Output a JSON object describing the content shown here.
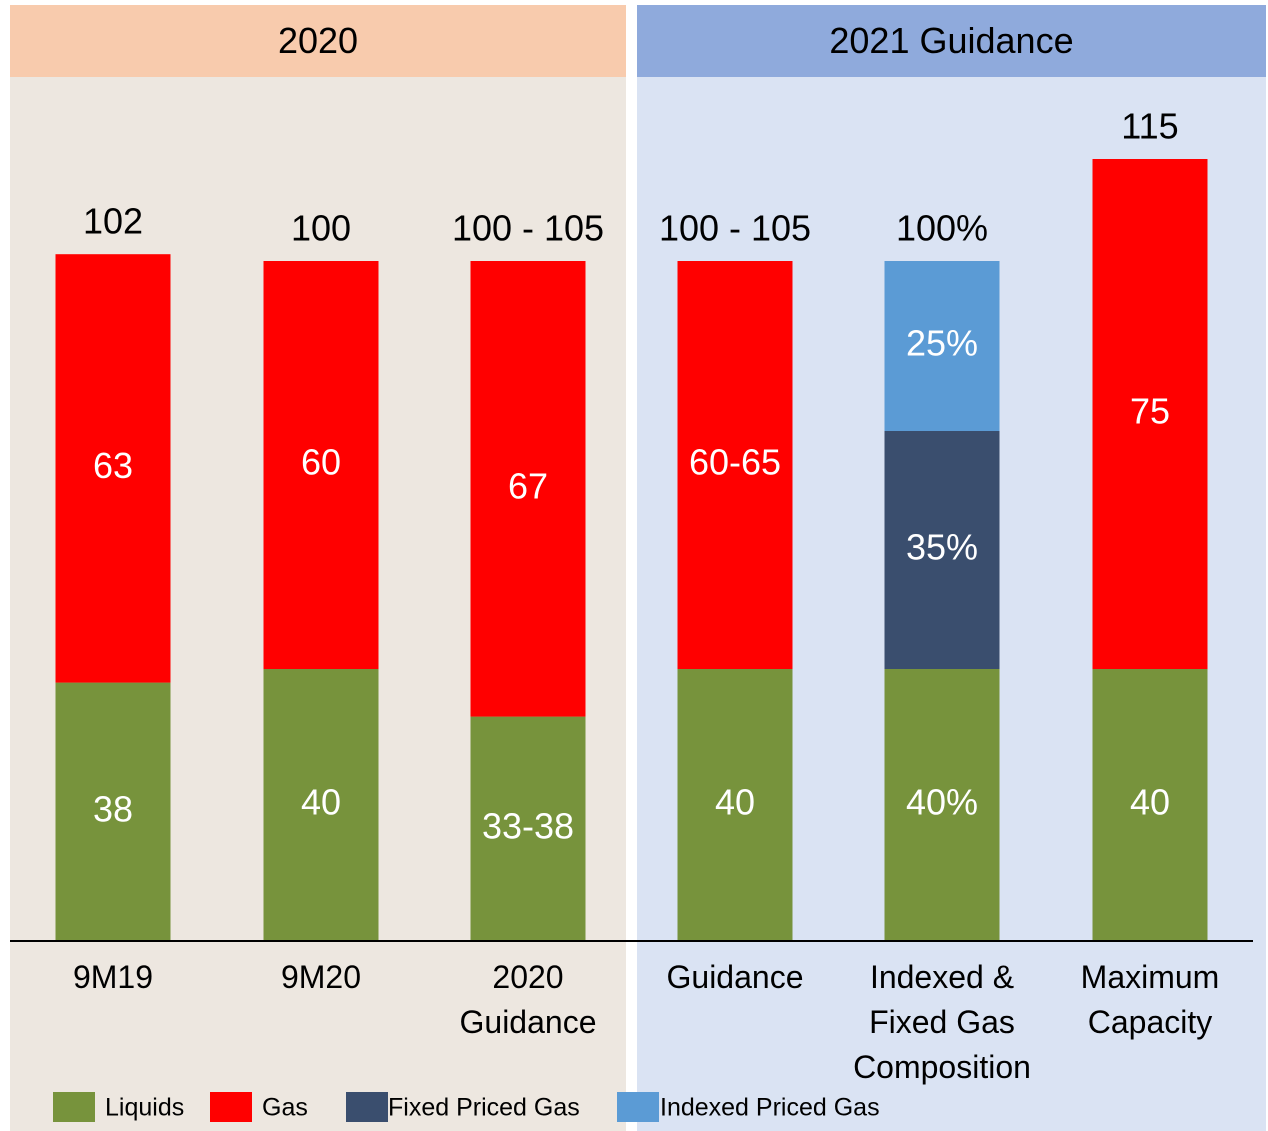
{
  "chart_data": {
    "type": "stacked-bar",
    "groups": [
      {
        "label": "2020",
        "color": "#f8cbad",
        "background": "#ede7e0"
      },
      {
        "label": "2021 Guidance",
        "color": "#8faadc",
        "background": "#dae3f3"
      }
    ],
    "categories": [
      "9M19",
      "9M20",
      "2020\nGuidance",
      "Guidance",
      "Indexed &\nFixed Gas\nComposition",
      "Maximum\nCapacity"
    ],
    "category_groups": [
      0,
      0,
      0,
      1,
      1,
      1
    ],
    "series": [
      {
        "name": "Liquids",
        "color": "#77933c",
        "values": [
          38,
          40,
          33,
          40,
          40,
          40
        ],
        "value_labels": [
          "38",
          "40",
          "33-38",
          "40",
          "40%",
          "40"
        ]
      },
      {
        "name": "Gas",
        "color": "#ff0000",
        "values": [
          63,
          60,
          67,
          60,
          null,
          75
        ],
        "value_labels": [
          "63",
          "60",
          "67",
          "60-65",
          null,
          "75"
        ]
      },
      {
        "name": "Fixed Priced Gas",
        "color": "#3a4e6e",
        "values": [
          null,
          null,
          null,
          null,
          35,
          null
        ],
        "value_labels": [
          null,
          null,
          null,
          null,
          "35%",
          null
        ]
      },
      {
        "name": "Indexed Priced Gas",
        "color": "#5b9bd5",
        "values": [
          null,
          null,
          null,
          null,
          25,
          null
        ],
        "value_labels": [
          null,
          null,
          null,
          null,
          "25%",
          null
        ]
      }
    ],
    "total_labels": [
      "102",
      "100",
      "100 - 105",
      "100 - 105",
      "100%",
      "115"
    ]
  }
}
